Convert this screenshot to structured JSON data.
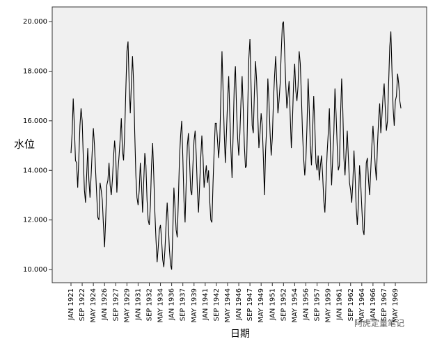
{
  "chart_data": {
    "type": "line",
    "x_label": "日期",
    "y_label": "水位",
    "watermark": "阿虎定量笔记",
    "color": "#000000",
    "categories": [
      "JAN 1921",
      null,
      null,
      null,
      null,
      null,
      null,
      null,
      null,
      null,
      "SEP 1922",
      null,
      null,
      null,
      null,
      null,
      null,
      null,
      null,
      null,
      "MAY 1924",
      null,
      null,
      null,
      null,
      null,
      null,
      null,
      null,
      null,
      "JAN 1926",
      null,
      null,
      null,
      null,
      null,
      null,
      null,
      null,
      null,
      "SEP 1927",
      null,
      null,
      null,
      null,
      null,
      null,
      null,
      null,
      null,
      "MAY 1929",
      null,
      null,
      null,
      null,
      null,
      null,
      null,
      null,
      null,
      "JAN 1931",
      null,
      null,
      null,
      null,
      null,
      null,
      null,
      null,
      null,
      "SEP 1932",
      null,
      null,
      null,
      null,
      null,
      null,
      null,
      null,
      null,
      "MAY 1934",
      null,
      null,
      null,
      null,
      null,
      null,
      null,
      null,
      null,
      "JAN 1936",
      null,
      null,
      null,
      null,
      null,
      null,
      null,
      null,
      null,
      "SEP 1937",
      null,
      null,
      null,
      null,
      null,
      null,
      null,
      null,
      null,
      "MAY 1939",
      null,
      null,
      null,
      null,
      null,
      null,
      null,
      null,
      null,
      "JAN 1941",
      null,
      null,
      null,
      null,
      null,
      null,
      null,
      null,
      null,
      "SEP 1942",
      null,
      null,
      null,
      null,
      null,
      null,
      null,
      null,
      null,
      "MAY 1944",
      null,
      null,
      null,
      null,
      null,
      null,
      null,
      null,
      null,
      "JAN 1946",
      null,
      null,
      null,
      null,
      null,
      null,
      null,
      null,
      null,
      "SEP 1947",
      null,
      null,
      null,
      null,
      null,
      null,
      null,
      null,
      null,
      "MAY 1949",
      null,
      null,
      null,
      null,
      null,
      null,
      null,
      null,
      null,
      "JAN 1951",
      null,
      null,
      null,
      null,
      null,
      null,
      null,
      null,
      null,
      "SEP 1952",
      null,
      null,
      null,
      null,
      null,
      null,
      null,
      null,
      null,
      "MAY 1954",
      null,
      null,
      null,
      null,
      null,
      null,
      null,
      null,
      null,
      "JAN 1956",
      null,
      null,
      null,
      null,
      null,
      null,
      null,
      null,
      null,
      "SEP 1957",
      null,
      null,
      null,
      null,
      null,
      null,
      null,
      null,
      null,
      "MAY 1959",
      null,
      null,
      null,
      null,
      null,
      null,
      null,
      null,
      null,
      "JAN 1961",
      null,
      null,
      null,
      null,
      null,
      null,
      null,
      null,
      null,
      "SEP 1962",
      null,
      null,
      null,
      null,
      null,
      null,
      null,
      null,
      null,
      "MAY 1964",
      null,
      null,
      null,
      null,
      null,
      null,
      null,
      null,
      null,
      "JAN 1966",
      null,
      null,
      null,
      null,
      null,
      null,
      null,
      null,
      null,
      "SEP 1967",
      null,
      null,
      null,
      null,
      null,
      null,
      null,
      null,
      null,
      "MAY 1969",
      null,
      null,
      null,
      null,
      null
    ],
    "values": [
      14.7,
      15.5,
      16.9,
      15.8,
      14.4,
      14.3,
      13.3,
      14.5,
      15.8,
      16.5,
      16.0,
      14.5,
      13.2,
      12.7,
      13.8,
      14.9,
      13.6,
      12.9,
      13.8,
      14.8,
      15.7,
      15.0,
      14.0,
      13.0,
      12.1,
      12.0,
      13.5,
      13.2,
      12.8,
      11.8,
      10.9,
      12.0,
      13.4,
      13.6,
      14.3,
      13.4,
      13.0,
      13.6,
      14.5,
      15.2,
      14.6,
      13.1,
      14.0,
      14.6,
      15.3,
      16.1,
      14.8,
      14.4,
      15.5,
      17.2,
      18.8,
      19.2,
      17.5,
      16.3,
      17.5,
      18.6,
      17.5,
      15.5,
      13.8,
      12.9,
      12.6,
      13.2,
      14.3,
      13.5,
      12.3,
      13.5,
      14.7,
      14.2,
      12.8,
      12.0,
      11.8,
      12.6,
      14.2,
      15.1,
      13.8,
      12.3,
      11.2,
      10.3,
      10.9,
      11.6,
      11.8,
      11.2,
      10.4,
      10.1,
      10.8,
      11.8,
      12.7,
      11.8,
      10.8,
      10.2,
      10.0,
      11.5,
      13.3,
      12.5,
      11.6,
      11.3,
      12.8,
      14.5,
      15.4,
      16.0,
      14.5,
      12.8,
      11.9,
      13.5,
      15.0,
      15.5,
      14.4,
      13.2,
      13.0,
      14.2,
      15.2,
      15.6,
      14.6,
      13.2,
      12.3,
      13.4,
      14.5,
      15.4,
      14.6,
      13.3,
      13.8,
      14.2,
      13.5,
      14.0,
      12.8,
      12.0,
      11.9,
      13.5,
      14.8,
      15.9,
      15.9,
      15.2,
      14.5,
      15.2,
      17.0,
      18.8,
      17.2,
      15.5,
      14.3,
      15.5,
      16.8,
      17.8,
      16.2,
      14.8,
      13.7,
      15.5,
      17.5,
      18.2,
      16.5,
      15.3,
      14.6,
      15.5,
      16.8,
      17.8,
      16.5,
      15.0,
      14.1,
      14.2,
      16.5,
      18.5,
      19.3,
      17.4,
      15.8,
      15.5,
      17.2,
      18.4,
      17.6,
      16.2,
      14.9,
      15.5,
      16.3,
      15.8,
      14.5,
      13.0,
      14.8,
      15.8,
      17.7,
      16.8,
      15.5,
      14.6,
      15.3,
      16.8,
      17.8,
      18.6,
      17.5,
      16.3,
      16.8,
      17.5,
      18.8,
      19.9,
      20.0,
      18.8,
      17.5,
      16.5,
      17.0,
      17.6,
      16.2,
      14.9,
      16.0,
      17.5,
      18.3,
      17.2,
      16.8,
      17.4,
      18.8,
      18.3,
      17.0,
      15.5,
      14.5,
      13.8,
      14.4,
      15.8,
      17.7,
      16.5,
      15.0,
      14.2,
      15.5,
      17.0,
      15.8,
      14.3,
      14.0,
      14.6,
      13.6,
      14.2,
      14.6,
      13.8,
      12.8,
      12.3,
      13.5,
      14.7,
      15.5,
      16.5,
      14.8,
      13.4,
      14.5,
      15.5,
      17.3,
      16.3,
      15.0,
      14.0,
      14.2,
      16.2,
      17.7,
      16.5,
      14.5,
      13.8,
      14.8,
      15.6,
      14.5,
      13.5,
      13.2,
      12.7,
      13.5,
      14.8,
      13.8,
      12.5,
      11.8,
      12.7,
      14.2,
      13.5,
      12.5,
      11.6,
      11.4,
      12.8,
      14.3,
      14.5,
      13.6,
      13.0,
      14.0,
      15.0,
      15.8,
      15.0,
      14.2,
      13.6,
      15.0,
      16.0,
      16.7,
      15.5,
      16.2,
      17.0,
      17.5,
      16.5,
      15.6,
      16.0,
      17.5,
      19.0,
      19.6,
      18.0,
      16.5,
      15.8,
      16.8,
      17.0,
      17.9,
      17.5,
      16.8,
      16.5
    ],
    "ylim": [
      9.47,
      20.59
    ],
    "yticks": [
      {
        "value": 10,
        "label": "10.000"
      },
      {
        "value": 12,
        "label": "12.000"
      },
      {
        "value": 14,
        "label": "14.000"
      },
      {
        "value": 16,
        "label": "16.000"
      },
      {
        "value": 18,
        "label": "18.000"
      },
      {
        "value": 20,
        "label": "20.000"
      }
    ],
    "grid": false
  }
}
